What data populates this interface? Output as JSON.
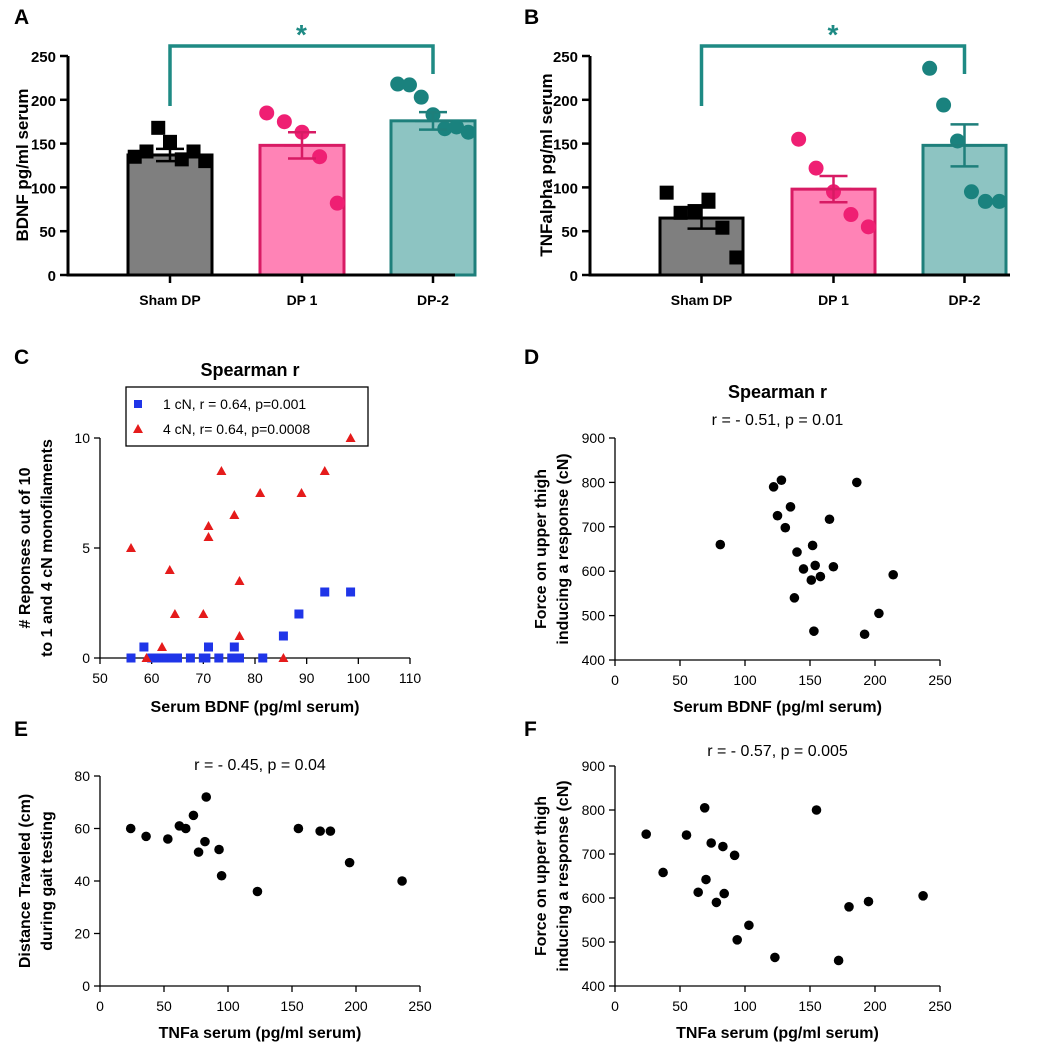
{
  "colors": {
    "sham": "#7f7f7f",
    "dp1": "#ff83b6",
    "dp1_point": "#ef1f73",
    "dp1_border": "#d81b64",
    "dp2": "#8dc4c2",
    "dp2_point": "#1a827e",
    "dp2_border": "#1e7f7b",
    "sig": "#1e8a84",
    "blue": "#1f35e8",
    "red": "#e51b1b",
    "black": "#000000"
  },
  "chart_data": [
    {
      "panel": "A",
      "type": "bar",
      "ylabel": "BDNF pg/ml serum",
      "ylim": [
        0,
        250
      ],
      "yticks": [
        0,
        50,
        100,
        150,
        200,
        250
      ],
      "categories": [
        "Sham DP",
        "DP 1",
        "DP-2"
      ],
      "means": [
        137,
        148,
        176
      ],
      "sem": [
        7,
        15,
        10
      ],
      "points": [
        [
          135,
          141,
          168,
          152,
          132,
          141,
          130
        ],
        [
          185,
          175,
          163,
          135,
          82
        ],
        [
          218,
          217,
          203,
          183,
          167,
          169,
          163
        ]
      ],
      "markers": [
        "square",
        "circle",
        "circle"
      ],
      "significance": {
        "from": 0,
        "to": 2,
        "label": "*"
      }
    },
    {
      "panel": "B",
      "type": "bar",
      "ylabel": "TNFalpha pg/ml serum",
      "ylim": [
        0,
        250
      ],
      "yticks": [
        0,
        50,
        100,
        150,
        200,
        250
      ],
      "categories": [
        "Sham DP",
        "DP 1",
        "DP-2"
      ],
      "means": [
        65,
        98,
        148
      ],
      "sem": [
        12,
        15,
        24
      ],
      "points": [
        [
          94,
          71,
          73,
          86,
          54,
          20
        ],
        [
          155,
          122,
          95,
          69,
          55
        ],
        [
          236,
          194,
          153,
          95,
          84,
          84
        ]
      ],
      "markers": [
        "square",
        "circle",
        "circle"
      ],
      "significance": {
        "from": 0,
        "to": 2,
        "label": "*"
      }
    },
    {
      "panel": "C",
      "type": "scatter",
      "title": "Spearman r",
      "xlabel": "Serum BDNF (pg/ml serum)",
      "ylabel_lines": [
        "# Reponses out of 10",
        "to 1 and 4 cN monofilaments"
      ],
      "xlim": [
        50,
        110
      ],
      "ylim": [
        0,
        10
      ],
      "xticks": [
        50,
        60,
        70,
        80,
        90,
        100,
        110
      ],
      "yticks": [
        0,
        5,
        10
      ],
      "series": [
        {
          "name": "1 cN, r = 0.64, p=0.001",
          "marker": "square",
          "points": [
            [
              56,
              0
            ],
            [
              58.5,
              0.5
            ],
            [
              60,
              0
            ],
            [
              61.5,
              0
            ],
            [
              62.5,
              0
            ],
            [
              63,
              0
            ],
            [
              64,
              0
            ],
            [
              65,
              0
            ],
            [
              67.5,
              0
            ],
            [
              70,
              0
            ],
            [
              70.5,
              0
            ],
            [
              71,
              0.5
            ],
            [
              73,
              0
            ],
            [
              75.5,
              0
            ],
            [
              76,
              0.5
            ],
            [
              77,
              0
            ],
            [
              81.5,
              0
            ],
            [
              85.5,
              1
            ],
            [
              88.5,
              2
            ],
            [
              93.5,
              3
            ],
            [
              98.5,
              3
            ]
          ]
        },
        {
          "name": "4 cN, r= 0.64, p=0.0008",
          "marker": "triangle",
          "points": [
            [
              56,
              5
            ],
            [
              59,
              0
            ],
            [
              62,
              0.5
            ],
            [
              63.5,
              4
            ],
            [
              64.5,
              2
            ],
            [
              70,
              2
            ],
            [
              71,
              5.5
            ],
            [
              71,
              6
            ],
            [
              73.5,
              8.5
            ],
            [
              76,
              6.5
            ],
            [
              77,
              3.5
            ],
            [
              77,
              1
            ],
            [
              81,
              7.5
            ],
            [
              85.5,
              0
            ],
            [
              89,
              7.5
            ],
            [
              93.5,
              8.5
            ],
            [
              98.5,
              10
            ]
          ]
        }
      ]
    },
    {
      "panel": "D",
      "type": "scatter",
      "title": "Spearman r",
      "subtitle": "r = - 0.51, p = 0.01",
      "xlabel": "Serum BDNF (pg/ml serum)",
      "ylabel_lines": [
        "Force on upper thigh",
        "inducing a response (cN)"
      ],
      "xlim": [
        0,
        250
      ],
      "ylim": [
        400,
        900
      ],
      "xticks": [
        0,
        50,
        100,
        150,
        200,
        250
      ],
      "yticks": [
        400,
        500,
        600,
        700,
        800,
        900
      ],
      "points": [
        [
          81,
          660
        ],
        [
          122,
          790
        ],
        [
          125,
          725
        ],
        [
          128,
          805
        ],
        [
          131,
          698
        ],
        [
          135,
          745
        ],
        [
          138,
          540
        ],
        [
          140,
          643
        ],
        [
          145,
          605
        ],
        [
          152,
          658
        ],
        [
          151,
          580
        ],
        [
          154,
          613
        ],
        [
          153,
          465
        ],
        [
          158,
          588
        ],
        [
          165,
          717
        ],
        [
          168,
          610
        ],
        [
          186,
          800
        ],
        [
          192,
          458
        ],
        [
          203,
          505
        ],
        [
          214,
          592
        ]
      ]
    },
    {
      "panel": "E",
      "type": "scatter",
      "subtitle": "r = - 0.45, p = 0.04",
      "xlabel": "TNFa serum (pg/ml serum)",
      "ylabel_lines": [
        "Distance Traveled (cm)",
        "during gait testing"
      ],
      "xlim": [
        0,
        250
      ],
      "ylim": [
        0,
        80
      ],
      "xticks": [
        0,
        50,
        100,
        150,
        200,
        250
      ],
      "yticks": [
        0,
        20,
        40,
        60,
        80
      ],
      "points": [
        [
          24,
          60
        ],
        [
          36,
          57
        ],
        [
          53,
          56
        ],
        [
          62,
          61
        ],
        [
          67,
          60
        ],
        [
          73,
          65
        ],
        [
          77,
          51
        ],
        [
          82,
          55
        ],
        [
          83,
          72
        ],
        [
          93,
          52
        ],
        [
          95,
          42
        ],
        [
          123,
          36
        ],
        [
          155,
          60
        ],
        [
          172,
          59
        ],
        [
          180,
          59
        ],
        [
          195,
          47
        ],
        [
          236,
          40
        ]
      ]
    },
    {
      "panel": "F",
      "type": "scatter",
      "subtitle": "r = - 0.57, p = 0.005",
      "xlabel": "TNFa serum (pg/ml serum)",
      "ylabel_lines": [
        "Force on upper thigh",
        "inducing a response (cN)"
      ],
      "xlim": [
        0,
        250
      ],
      "ylim": [
        400,
        900
      ],
      "xticks": [
        0,
        50,
        100,
        150,
        200,
        250
      ],
      "yticks": [
        400,
        500,
        600,
        700,
        800,
        900
      ],
      "points": [
        [
          24,
          745
        ],
        [
          37,
          658
        ],
        [
          55,
          743
        ],
        [
          64,
          613
        ],
        [
          69,
          805
        ],
        [
          70,
          642
        ],
        [
          74,
          725
        ],
        [
          78,
          590
        ],
        [
          83,
          717
        ],
        [
          84,
          610
        ],
        [
          92,
          697
        ],
        [
          94,
          505
        ],
        [
          103,
          538
        ],
        [
          123,
          465
        ],
        [
          155,
          800
        ],
        [
          172,
          458
        ],
        [
          180,
          580
        ],
        [
          195,
          592
        ],
        [
          237,
          605
        ]
      ]
    }
  ]
}
